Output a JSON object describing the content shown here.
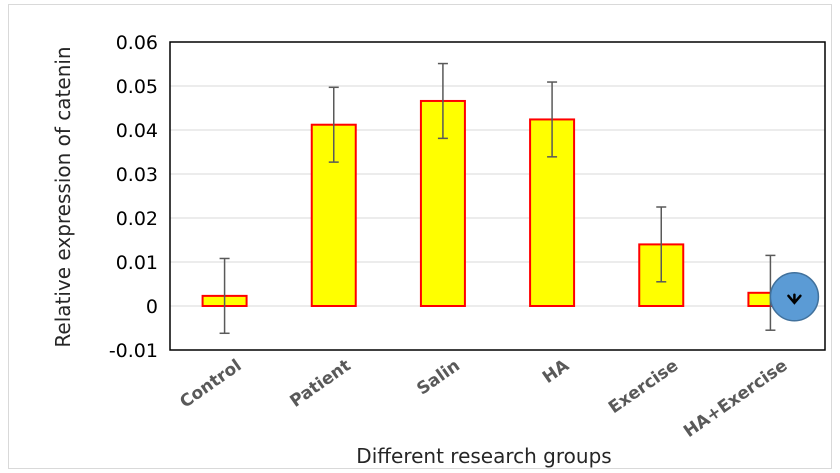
{
  "chart_data": {
    "type": "bar",
    "title": "",
    "xlabel": "Different research groups",
    "ylabel": "Relative expression of catenin",
    "categories": [
      "Control",
      "Patient",
      "Salin",
      "HA",
      "Exercise",
      "HA+Exercise"
    ],
    "values": [
      0.0023,
      0.0412,
      0.0466,
      0.0424,
      0.014,
      0.003
    ],
    "errors": [
      0.0085,
      0.0085,
      0.0085,
      0.0085,
      0.0085,
      0.0085
    ],
    "ylim": [
      -0.01,
      0.06
    ],
    "yticks": [
      "-0.01",
      "0",
      "0.01",
      "0.02",
      "0.03",
      "0.04",
      "0.05",
      "0.06"
    ],
    "grid": true,
    "legend": "none",
    "colors": {
      "bar_fill": "#ffff00",
      "bar_border": "#ff0000",
      "error_bar": "#595959",
      "grid": "#d9d9d9",
      "annotation_circle": "#5b9bd5"
    },
    "annotations": [
      {
        "type": "circle-marker",
        "category": "HA+Exercise",
        "symbol": "arrow-down"
      }
    ]
  }
}
